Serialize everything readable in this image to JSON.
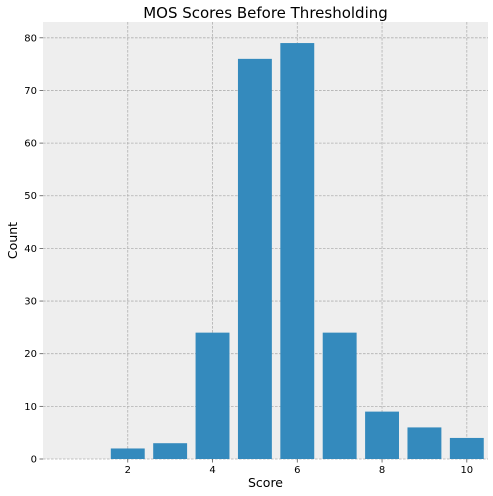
{
  "chart_data": {
    "type": "bar",
    "title": "MOS Scores Before Thresholding",
    "xlabel": "Score",
    "ylabel": "Count",
    "x": [
      1,
      2,
      3,
      4,
      5,
      6,
      7,
      8,
      9,
      10
    ],
    "values": [
      0,
      2,
      3,
      24,
      76,
      79,
      24,
      9,
      6,
      4
    ],
    "xlim": [
      0,
      10.5
    ],
    "ylim": [
      0,
      83
    ],
    "xticks": [
      2,
      4,
      6,
      8,
      10
    ],
    "yticks": [
      0,
      10,
      20,
      30,
      40,
      50,
      60,
      70,
      80
    ],
    "grid": true,
    "legend": "none",
    "colors": {
      "bar": "#348abd",
      "plot_background": "#eeeeee",
      "grid": "#b0b0b0"
    }
  }
}
